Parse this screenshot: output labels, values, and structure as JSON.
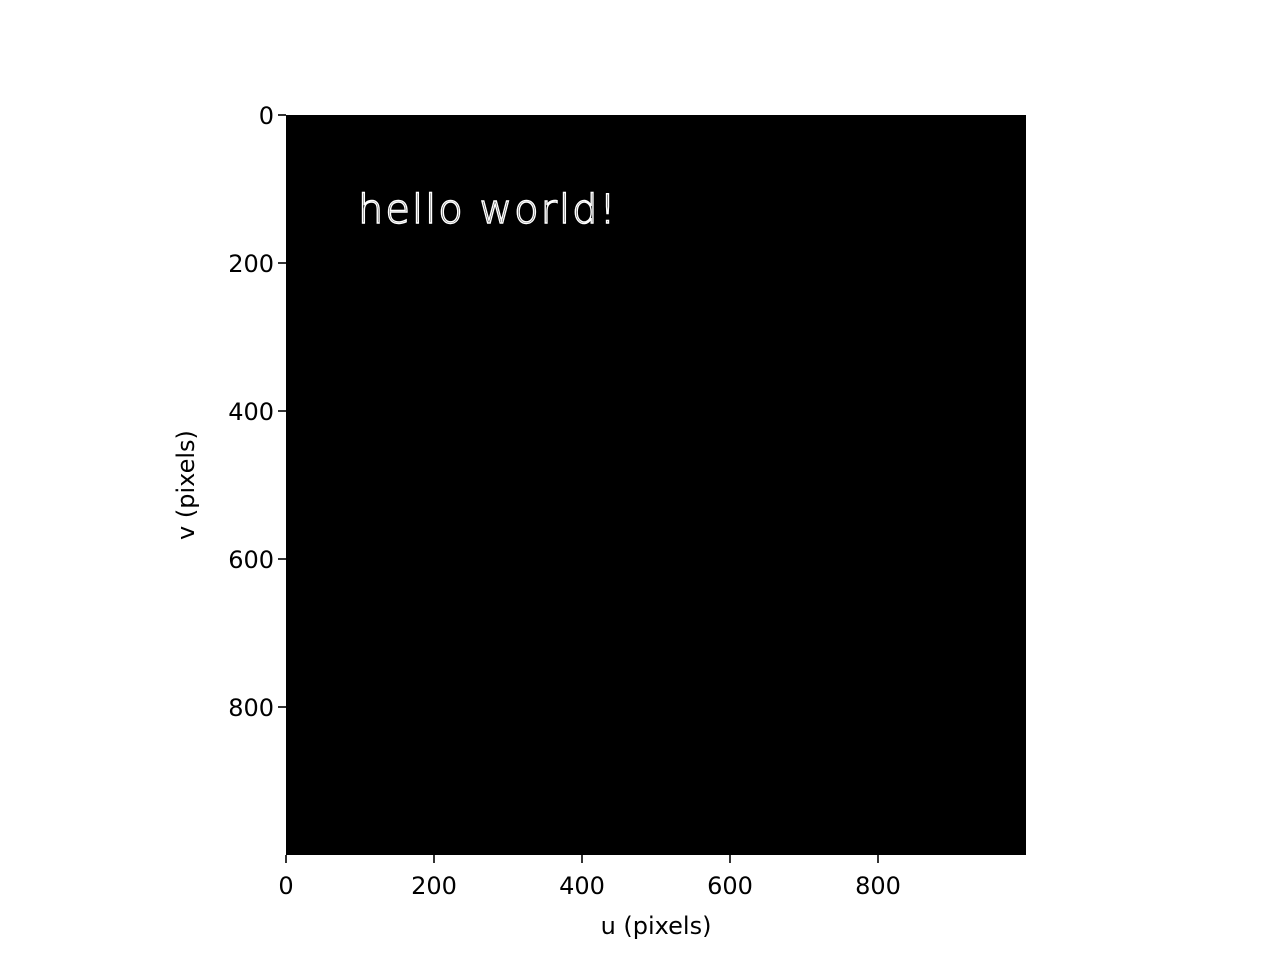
{
  "chart_data": {
    "type": "heatmap",
    "title": "",
    "xlabel": "u (pixels)",
    "ylabel": "v (pixels)",
    "xlim": [
      0,
      1000
    ],
    "ylim": [
      1000,
      0
    ],
    "x_ticks": [
      0,
      200,
      400,
      600,
      800
    ],
    "y_ticks": [
      0,
      200,
      400,
      600,
      800
    ],
    "image": {
      "width": 1000,
      "height": 1000,
      "background_color": "#000000",
      "text_overlays": [
        {
          "text": "hello world!",
          "u": 100,
          "v": 150,
          "color": "#ffffff"
        }
      ]
    },
    "grid": false
  }
}
